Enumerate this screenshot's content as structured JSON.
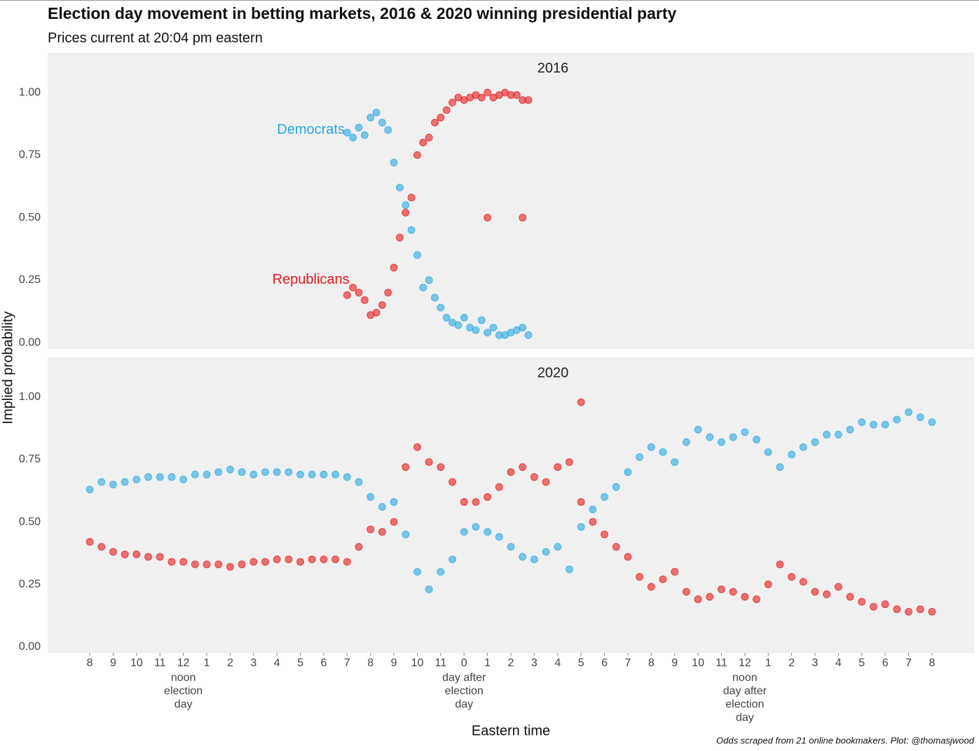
{
  "title": "Election day movement in betting markets, 2016 & 2020 winning presidential party",
  "subtitle": "Prices current at  20:04 pm eastern",
  "x_label": "Eastern time",
  "y_label": "Implied probability",
  "caption": "Odds scraped from 21 online bookmakers. Plot: @thomasjwood",
  "chart_data": [
    {
      "type": "scatter",
      "title": "2016",
      "xlim": [
        -1.8,
        37.8
      ],
      "ylim": [
        -0.025,
        1.16
      ],
      "grid": false,
      "yticks": [
        {
          "value": 0,
          "label": "0.00"
        },
        {
          "value": 0.25,
          "label": "0.25"
        },
        {
          "value": 0.5,
          "label": "0.50"
        },
        {
          "value": 0.75,
          "label": "0.75"
        },
        {
          "value": 1,
          "label": "1.00"
        }
      ],
      "annotations": [
        {
          "text": "Democrats",
          "x": 10.9,
          "y": 0.85,
          "color": "#29a9df"
        },
        {
          "text": "Republicans",
          "x": 11.1,
          "y": 0.25,
          "color": "#e41a1c"
        }
      ],
      "series": [
        {
          "name": "Democrats",
          "color": "#29a9df",
          "x": [
            11,
            11.25,
            11.5,
            11.75,
            12,
            12.25,
            12.5,
            12.75,
            13,
            13.25,
            13.5,
            13.75,
            14,
            14.25,
            14.5,
            14.75,
            15,
            15.25,
            15.5,
            15.75,
            16,
            16.25,
            16.5,
            16.75,
            17,
            17.25,
            17.5,
            17.75,
            18,
            18.25,
            18.5,
            18.75
          ],
          "values": [
            0.84,
            0.82,
            0.86,
            0.83,
            0.9,
            0.92,
            0.88,
            0.85,
            0.72,
            0.62,
            0.55,
            0.45,
            0.35,
            0.22,
            0.25,
            0.18,
            0.14,
            0.1,
            0.08,
            0.07,
            0.1,
            0.06,
            0.05,
            0.09,
            0.04,
            0.06,
            0.03,
            0.03,
            0.04,
            0.05,
            0.06,
            0.03
          ]
        },
        {
          "name": "Republicans",
          "color": "#e41a1c",
          "x": [
            11,
            11.25,
            11.5,
            11.75,
            12,
            12.25,
            12.5,
            12.75,
            13,
            13.25,
            13.5,
            13.75,
            14,
            14.25,
            14.5,
            14.75,
            15,
            15.25,
            15.5,
            15.75,
            16,
            16.25,
            16.5,
            16.75,
            17,
            17.25,
            17.5,
            17.75,
            18,
            18.25,
            18.5,
            18.75,
            17,
            18.5
          ],
          "values": [
            0.19,
            0.22,
            0.2,
            0.17,
            0.11,
            0.12,
            0.15,
            0.2,
            0.3,
            0.42,
            0.52,
            0.58,
            0.75,
            0.8,
            0.82,
            0.88,
            0.9,
            0.93,
            0.96,
            0.98,
            0.97,
            0.98,
            0.99,
            0.98,
            1.0,
            0.98,
            0.99,
            1.0,
            0.99,
            0.99,
            0.97,
            0.97,
            0.5,
            0.5
          ]
        }
      ]
    },
    {
      "type": "scatter",
      "title": "2020",
      "xlim": [
        -1.8,
        37.8
      ],
      "ylim": [
        -0.025,
        1.16
      ],
      "grid": false,
      "yticks": [
        {
          "value": 0,
          "label": "0.00"
        },
        {
          "value": 0.25,
          "label": "0.25"
        },
        {
          "value": 0.5,
          "label": "0.50"
        },
        {
          "value": 0.75,
          "label": "0.75"
        },
        {
          "value": 1,
          "label": "1.00"
        }
      ],
      "xticks": [
        {
          "value": 0,
          "label": "8"
        },
        {
          "value": 1,
          "label": "9"
        },
        {
          "value": 2,
          "label": "10"
        },
        {
          "value": 3,
          "label": "11"
        },
        {
          "value": 4,
          "label": "12",
          "sublines": [
            "noon",
            "election",
            "day"
          ]
        },
        {
          "value": 5,
          "label": "1"
        },
        {
          "value": 6,
          "label": "2"
        },
        {
          "value": 7,
          "label": "3"
        },
        {
          "value": 8,
          "label": "4"
        },
        {
          "value": 9,
          "label": "5"
        },
        {
          "value": 10,
          "label": "6"
        },
        {
          "value": 11,
          "label": "7"
        },
        {
          "value": 12,
          "label": "8"
        },
        {
          "value": 13,
          "label": "9"
        },
        {
          "value": 14,
          "label": "10"
        },
        {
          "value": 15,
          "label": "11"
        },
        {
          "value": 16,
          "label": "0",
          "sublines": [
            "day after",
            "election",
            "day"
          ]
        },
        {
          "value": 17,
          "label": "1"
        },
        {
          "value": 18,
          "label": "2"
        },
        {
          "value": 19,
          "label": "3"
        },
        {
          "value": 20,
          "label": "4"
        },
        {
          "value": 21,
          "label": "5"
        },
        {
          "value": 22,
          "label": "6"
        },
        {
          "value": 23,
          "label": "7"
        },
        {
          "value": 24,
          "label": "8"
        },
        {
          "value": 25,
          "label": "9"
        },
        {
          "value": 26,
          "label": "10"
        },
        {
          "value": 27,
          "label": "11"
        },
        {
          "value": 28,
          "label": "12",
          "sublines": [
            "noon",
            "day after",
            "election",
            "day"
          ]
        },
        {
          "value": 29,
          "label": "1"
        },
        {
          "value": 30,
          "label": "2"
        },
        {
          "value": 31,
          "label": "3"
        },
        {
          "value": 32,
          "label": "4"
        },
        {
          "value": 33,
          "label": "5"
        },
        {
          "value": 34,
          "label": "6"
        },
        {
          "value": 35,
          "label": "7"
        },
        {
          "value": 36,
          "label": "8"
        }
      ],
      "series": [
        {
          "name": "Democrats",
          "color": "#29a9df",
          "x": [
            0,
            0.5,
            1,
            1.5,
            2,
            2.5,
            3,
            3.5,
            4,
            4.5,
            5,
            5.5,
            6,
            6.5,
            7,
            7.5,
            8,
            8.5,
            9,
            9.5,
            10,
            10.5,
            11,
            11.5,
            12,
            12.5,
            13,
            13.5,
            14,
            14.5,
            15,
            15.5,
            16,
            16.5,
            17,
            17.5,
            18,
            18.5,
            19,
            19.5,
            20,
            20.5,
            21,
            21.5,
            22,
            22.5,
            23,
            23.5,
            24,
            24.5,
            25,
            25.5,
            26,
            26.5,
            27,
            27.5,
            28,
            28.5,
            29,
            29.5,
            30,
            30.5,
            31,
            31.5,
            32,
            32.5,
            33,
            33.5,
            34,
            34.5,
            35,
            35.5,
            36
          ],
          "values": [
            0.63,
            0.66,
            0.65,
            0.66,
            0.67,
            0.68,
            0.68,
            0.68,
            0.67,
            0.69,
            0.69,
            0.7,
            0.71,
            0.7,
            0.69,
            0.7,
            0.7,
            0.7,
            0.69,
            0.69,
            0.69,
            0.69,
            0.68,
            0.66,
            0.6,
            0.56,
            0.58,
            0.45,
            0.3,
            0.23,
            0.3,
            0.35,
            0.46,
            0.48,
            0.46,
            0.44,
            0.4,
            0.36,
            0.35,
            0.38,
            0.4,
            0.31,
            0.48,
            0.55,
            0.6,
            0.64,
            0.7,
            0.76,
            0.8,
            0.78,
            0.74,
            0.82,
            0.87,
            0.84,
            0.82,
            0.84,
            0.86,
            0.83,
            0.78,
            0.72,
            0.77,
            0.8,
            0.82,
            0.85,
            0.85,
            0.87,
            0.9,
            0.89,
            0.89,
            0.91,
            0.94,
            0.92,
            0.9
          ]
        },
        {
          "name": "Republicans",
          "color": "#e41a1c",
          "x": [
            0,
            0.5,
            1,
            1.5,
            2,
            2.5,
            3,
            3.5,
            4,
            4.5,
            5,
            5.5,
            6,
            6.5,
            7,
            7.5,
            8,
            8.5,
            9,
            9.5,
            10,
            10.5,
            11,
            11.5,
            12,
            12.5,
            13,
            13.5,
            14,
            14.5,
            15,
            15.5,
            16,
            16.5,
            17,
            17.5,
            18,
            18.5,
            19,
            19.5,
            20,
            20.5,
            21,
            21.5,
            22,
            22.5,
            23,
            23.5,
            24,
            24.5,
            25,
            25.5,
            26,
            26.5,
            27,
            27.5,
            28,
            28.5,
            29,
            29.5,
            30,
            30.5,
            31,
            31.5,
            32,
            32.5,
            33,
            33.5,
            34,
            34.5,
            35,
            35.5,
            36,
            21
          ],
          "values": [
            0.42,
            0.4,
            0.38,
            0.37,
            0.37,
            0.36,
            0.36,
            0.34,
            0.34,
            0.33,
            0.33,
            0.33,
            0.32,
            0.33,
            0.34,
            0.34,
            0.35,
            0.35,
            0.34,
            0.35,
            0.35,
            0.35,
            0.34,
            0.4,
            0.47,
            0.46,
            0.5,
            0.72,
            0.8,
            0.74,
            0.72,
            0.66,
            0.58,
            0.58,
            0.6,
            0.64,
            0.7,
            0.72,
            0.68,
            0.66,
            0.72,
            0.74,
            0.58,
            0.5,
            0.45,
            0.4,
            0.36,
            0.28,
            0.24,
            0.27,
            0.3,
            0.22,
            0.19,
            0.2,
            0.23,
            0.22,
            0.2,
            0.19,
            0.25,
            0.33,
            0.28,
            0.26,
            0.22,
            0.21,
            0.24,
            0.2,
            0.18,
            0.16,
            0.17,
            0.15,
            0.14,
            0.15,
            0.14,
            0.98
          ]
        }
      ]
    }
  ]
}
